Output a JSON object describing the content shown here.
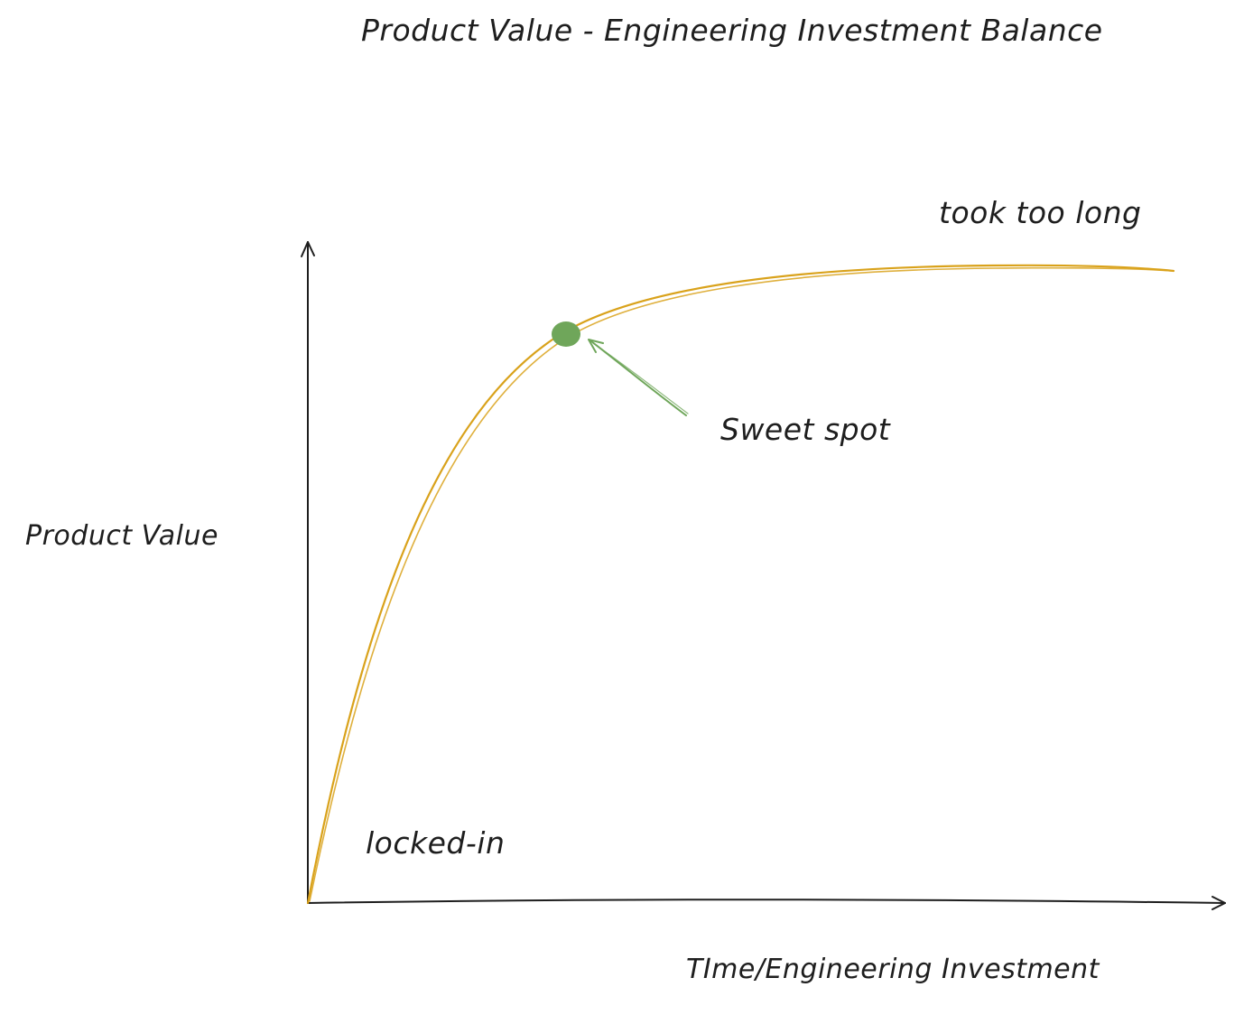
{
  "diagram": {
    "title": "Product Value - Engineering Investment Balance",
    "y_axis_label": "Product Value",
    "x_axis_label": "TIme/Engineering Investment",
    "annotations": {
      "end_label": "took too long",
      "sweet_spot_label": "Sweet spot",
      "start_label": "locked-in"
    },
    "colors": {
      "curve": "#d9a21b",
      "sweet_spot": "#6fa65a",
      "axes": "#1e1e1e",
      "text": "#1e1e1e"
    }
  }
}
